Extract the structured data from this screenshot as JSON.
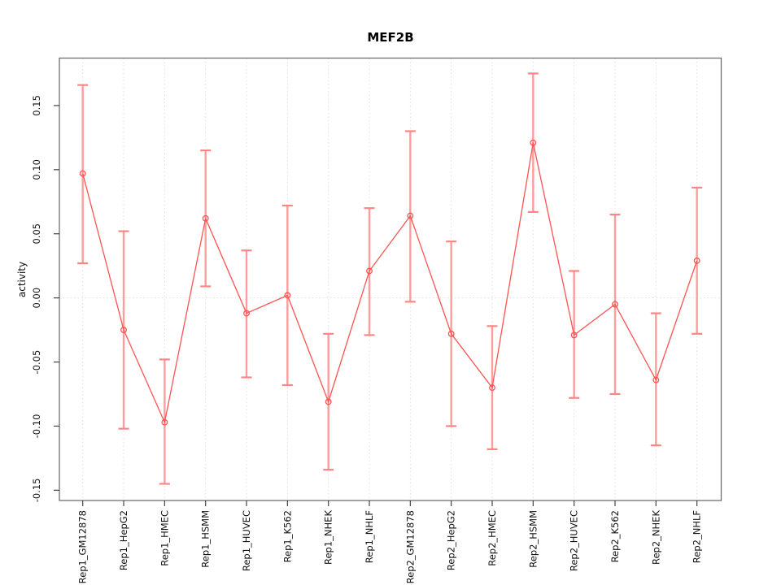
{
  "chart_data": {
    "type": "line",
    "title": "MEF2B",
    "ylabel": "activity",
    "xlabel": "",
    "marker": "open-circle",
    "legend": "none",
    "categories": [
      "Rep1_GM12878",
      "Rep1_HepG2",
      "Rep1_HMEC",
      "Rep1_HSMM",
      "Rep1_HUVEC",
      "Rep1_K562",
      "Rep1_NHEK",
      "Rep1_NHLF",
      "Rep2_GM12878",
      "Rep2_HepG2",
      "Rep2_HMEC",
      "Rep2_HSMM",
      "Rep2_HUVEC",
      "Rep2_K562",
      "Rep2_NHEK",
      "Rep2_NHLF"
    ],
    "series": [
      {
        "name": "activity",
        "values": [
          0.097,
          -0.025,
          -0.097,
          0.062,
          -0.012,
          0.002,
          -0.081,
          0.021,
          0.064,
          -0.028,
          -0.07,
          0.121,
          -0.029,
          -0.005,
          -0.064,
          0.029
        ],
        "error_high": [
          0.166,
          0.052,
          -0.048,
          0.115,
          0.037,
          0.072,
          -0.028,
          0.07,
          0.13,
          0.044,
          -0.022,
          0.175,
          0.021,
          0.065,
          -0.012,
          0.086
        ],
        "error_low": [
          0.027,
          -0.102,
          -0.145,
          0.009,
          -0.062,
          -0.068,
          -0.134,
          -0.029,
          -0.003,
          -0.1,
          -0.118,
          0.067,
          -0.078,
          -0.075,
          -0.115,
          -0.028
        ]
      }
    ],
    "yticks": [
      {
        "value": 0.15,
        "label": "0.15"
      },
      {
        "value": 0.1,
        "label": "0.10"
      },
      {
        "value": 0.05,
        "label": "0.05"
      },
      {
        "value": 0.0,
        "label": "0.00"
      },
      {
        "value": -0.05,
        "label": "-0.05"
      },
      {
        "value": -0.1,
        "label": "-0.10"
      },
      {
        "value": -0.15,
        "label": "-0.15"
      }
    ],
    "ylim": [
      -0.158,
      0.187
    ],
    "grid": {
      "vertical_per_category": true,
      "horizontal_zero_line": true,
      "style": "dotted"
    },
    "colors": {
      "line": "#ff5252",
      "marker": "#ff5252",
      "error_bar": "#ff9c9c",
      "error_cap": "#ff8585",
      "grid": "#dedede",
      "frame": "#6f6f6f",
      "tick": "#444444",
      "text": "#111111",
      "background": "#ffffff"
    }
  }
}
